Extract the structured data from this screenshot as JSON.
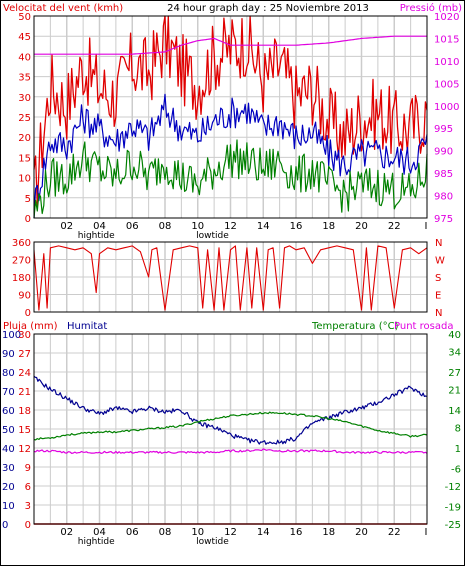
{
  "header": {
    "wind_label": "Velocitat del vent (kmh)",
    "title": "24 hour graph day : 25 Noviembre 2013",
    "pressure_label": "Pressió (mb)"
  },
  "labels_bottom": {
    "rain_label": "Pluja (mm)",
    "humidity_label": "Humitat",
    "temp_label": "Temperatura (°C)",
    "dew_label": "Punt rosada"
  },
  "colors": {
    "wind_gust": "#e00000",
    "wind_avg": "#0000c0",
    "wind_min": "#008000",
    "pressure": "#e000e0",
    "direction": "#e00000",
    "humidity": "#000090",
    "temperature": "#008000",
    "dew": "#e000e0",
    "rain": "#e00000",
    "grid": "#cccccc",
    "frame": "#000000"
  },
  "time_axis": {
    "ticks": [
      "02",
      "04",
      "06",
      "08",
      "10",
      "12",
      "14",
      "16",
      "18",
      "20",
      "22",
      "I"
    ],
    "annotations": [
      {
        "label": "hightide",
        "hour": 3.8
      },
      {
        "label": "lowtide",
        "hour": 10.9
      }
    ]
  },
  "chart_data": [
    {
      "type": "line",
      "name": "wind-speed",
      "title": "24 hour graph day : 25 Noviembre 2013",
      "ylabel": "Velocitat del vent (kmh)",
      "ylim": [
        0,
        50
      ],
      "yticks": [
        0,
        5,
        10,
        15,
        20,
        25,
        30,
        35,
        40,
        45,
        50
      ],
      "y2label": "Pressió (mb)",
      "y2lim": [
        975,
        1020
      ],
      "y2ticks": [
        975,
        980,
        985,
        990,
        995,
        1000,
        1005,
        1010,
        1015,
        1020
      ],
      "xlim": [
        0,
        24
      ],
      "grid": true,
      "series": [
        {
          "name": "gust",
          "axis": "y",
          "x": [
            0,
            1,
            2,
            3,
            4,
            5,
            6,
            7,
            8,
            9,
            10,
            11,
            12,
            13,
            14,
            15,
            16,
            17,
            18,
            19,
            20,
            21,
            22,
            23,
            24
          ],
          "values": [
            5,
            33,
            28,
            38,
            32,
            30,
            38,
            36,
            44,
            37,
            33,
            40,
            42,
            44,
            34,
            38,
            30,
            32,
            24,
            20,
            25,
            26,
            23,
            22,
            26
          ]
        },
        {
          "name": "average",
          "axis": "y",
          "x": [
            0,
            1,
            2,
            3,
            4,
            5,
            6,
            7,
            8,
            9,
            10,
            11,
            12,
            13,
            14,
            15,
            16,
            17,
            18,
            19,
            20,
            21,
            22,
            23,
            24
          ],
          "values": [
            3,
            19,
            18,
            25,
            22,
            19,
            23,
            20,
            27,
            22,
            20,
            24,
            26,
            27,
            22,
            24,
            20,
            21,
            16,
            13,
            16,
            16,
            15,
            14,
            19
          ]
        },
        {
          "name": "minimum",
          "axis": "y",
          "x": [
            0,
            1,
            2,
            3,
            4,
            5,
            6,
            7,
            8,
            9,
            10,
            11,
            12,
            13,
            14,
            15,
            16,
            17,
            18,
            19,
            20,
            21,
            22,
            23,
            24
          ],
          "values": [
            1,
            10,
            10,
            15,
            12,
            10,
            14,
            10,
            14,
            10,
            8,
            12,
            15,
            14,
            12,
            14,
            10,
            12,
            8,
            6,
            8,
            8,
            7,
            6,
            12
          ]
        },
        {
          "name": "pressure",
          "axis": "y2",
          "x": [
            0,
            2,
            4,
            6,
            8,
            9,
            10,
            11,
            12,
            14,
            16,
            18,
            20,
            22,
            24
          ],
          "values": [
            1011.5,
            1011.5,
            1011.5,
            1011.5,
            1012,
            1013.5,
            1014.5,
            1015,
            1013.5,
            1013.5,
            1013.5,
            1014,
            1015,
            1015.5,
            1015.5
          ]
        }
      ]
    },
    {
      "type": "line",
      "name": "wind-direction",
      "ylim": [
        0,
        360
      ],
      "yticks": [
        0,
        90,
        180,
        270,
        360
      ],
      "y2ticks": [
        "N",
        "W",
        "S",
        "E",
        "N"
      ],
      "xlim": [
        0,
        24
      ],
      "grid": true,
      "series": [
        {
          "name": "direction",
          "x": [
            0,
            0.3,
            0.6,
            0.8,
            1,
            1.5,
            2,
            2.5,
            3,
            3.5,
            3.8,
            4,
            4.5,
            5,
            5.5,
            6,
            6.5,
            7,
            7.2,
            7.5,
            8,
            8.5,
            9,
            9.5,
            10,
            10.3,
            10.6,
            11,
            11.3,
            11.6,
            12,
            12.3,
            12.6,
            13,
            13.3,
            13.6,
            14,
            14.3,
            14.6,
            15,
            15.3,
            15.6,
            16,
            16.5,
            17,
            17.5,
            18,
            18.5,
            19,
            19.5,
            20,
            20.3,
            20.6,
            21,
            21.5,
            22,
            22.5,
            23,
            23.5,
            24
          ],
          "values": [
            320,
            10,
            300,
            20,
            330,
            340,
            330,
            320,
            330,
            300,
            100,
            300,
            330,
            320,
            330,
            340,
            310,
            180,
            320,
            330,
            10,
            320,
            330,
            340,
            330,
            20,
            320,
            10,
            330,
            10,
            320,
            340,
            10,
            330,
            20,
            330,
            10,
            320,
            330,
            20,
            330,
            340,
            320,
            330,
            250,
            320,
            330,
            340,
            330,
            320,
            10,
            330,
            10,
            340,
            330,
            20,
            320,
            330,
            300,
            330
          ]
        }
      ]
    },
    {
      "type": "line",
      "name": "temperature-humidity",
      "ylabel": "Pluja (mm)",
      "ylim": [
        0,
        30
      ],
      "yticks": [
        0,
        3,
        6,
        9,
        12,
        15,
        18,
        21,
        24,
        27,
        30
      ],
      "humidity_ticks": [
        0,
        10,
        20,
        30,
        40,
        50,
        60,
        70,
        80,
        90,
        100
      ],
      "y2label": "Temperatura (°C)",
      "y2lim": [
        -25,
        40
      ],
      "y2ticks": [
        -25,
        -19,
        -12,
        -6,
        1,
        8,
        14,
        21,
        27,
        34,
        40
      ],
      "xlim": [
        0,
        24
      ],
      "grid": true,
      "series": [
        {
          "name": "humidity",
          "axis": "humidity",
          "x": [
            0,
            1,
            2,
            3,
            4,
            5,
            6,
            7,
            8,
            9,
            10,
            11,
            12,
            13,
            14,
            15,
            16,
            17,
            18,
            19,
            20,
            21,
            22,
            23,
            24
          ],
          "values": [
            77,
            71,
            66,
            61,
            58,
            61,
            59,
            61,
            59,
            60,
            53,
            51,
            47,
            44,
            43,
            43,
            45,
            53,
            56,
            59,
            61,
            64,
            68,
            72,
            67
          ]
        },
        {
          "name": "temperature",
          "axis": "y2",
          "x": [
            0,
            1,
            2,
            3,
            4,
            5,
            6,
            7,
            8,
            9,
            10,
            11,
            12,
            13,
            14,
            15,
            16,
            17,
            18,
            19,
            20,
            21,
            22,
            23,
            24
          ],
          "values": [
            4,
            4.5,
            5.5,
            6,
            6.5,
            6.5,
            7,
            7.5,
            8,
            8.5,
            10,
            11,
            12,
            12.5,
            13,
            13,
            12.5,
            12,
            11,
            10,
            8.5,
            7,
            6,
            5,
            5.5
          ]
        },
        {
          "name": "dew-point",
          "axis": "y2",
          "x": [
            0,
            1,
            2,
            3,
            4,
            5,
            6,
            7,
            8,
            9,
            10,
            11,
            12,
            13,
            14,
            15,
            16,
            17,
            18,
            19,
            20,
            21,
            22,
            23,
            24
          ],
          "values": [
            0,
            0,
            -0.5,
            -0.5,
            -0.5,
            -0.5,
            -0.5,
            -0.5,
            -0.5,
            -0.5,
            -0.5,
            -0.5,
            0,
            0,
            0.5,
            0,
            0,
            0,
            0,
            -0.5,
            -0.5,
            -0.5,
            -0.5,
            -0.5,
            -0.5
          ]
        },
        {
          "name": "rain",
          "axis": "y",
          "x": [
            0,
            24
          ],
          "values": [
            0,
            0
          ]
        }
      ]
    }
  ]
}
